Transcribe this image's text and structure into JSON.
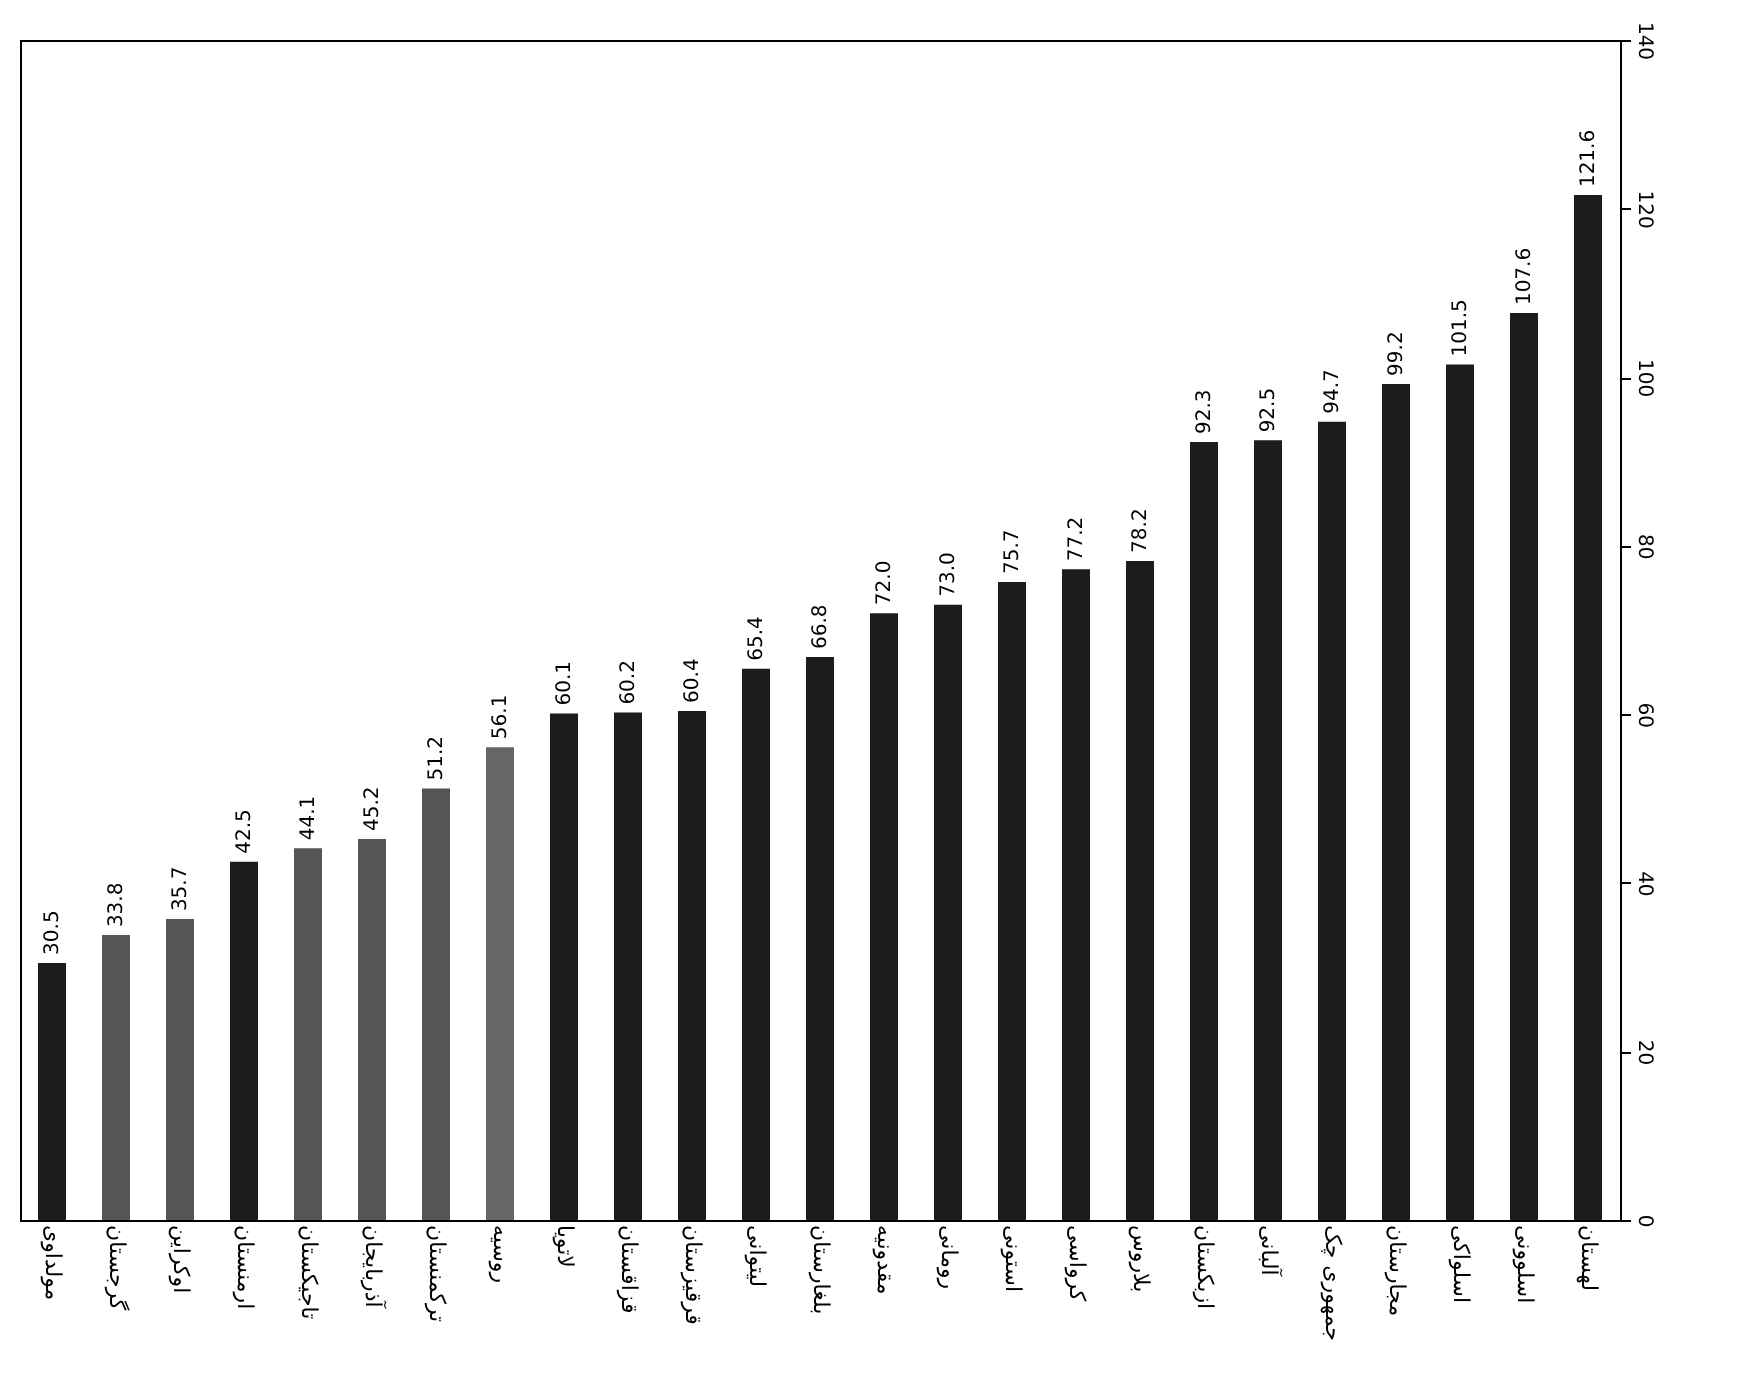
{
  "chart_data": {
    "type": "bar",
    "categories": [
      "مولداوی",
      "گرجستان",
      "اوکراین",
      "ارمنستان",
      "تاجیکستان",
      "آذربایجان",
      "ترکمنستان",
      "روسیه",
      "لاتویا",
      "قزاقستان",
      "قرقیزستان",
      "لیتوانی",
      "بلغارستان",
      "مقدونیه",
      "رومانی",
      "استونی",
      "کرواسی",
      "بلاروس",
      "ازبکستان",
      "آلبانی",
      "جمهوری چک",
      "مجارستان",
      "اسلواکی",
      "اسلوونی",
      "لهستان"
    ],
    "values": [
      30.5,
      33.8,
      35.7,
      42.5,
      44.1,
      45.2,
      51.2,
      56.1,
      60.1,
      60.2,
      60.4,
      65.4,
      66.8,
      72.0,
      73.0,
      75.7,
      77.2,
      78.2,
      92.3,
      92.5,
      94.7,
      99.2,
      101.5,
      107.6,
      121.6
    ],
    "value_labels": [
      "30.5",
      "33.8",
      "35.7",
      "42.5",
      "44.1",
      "45.2",
      "51.2",
      "56.1",
      "60.1",
      "60.2",
      "60.4",
      "65.4",
      "66.8",
      "72.0",
      "73.0",
      "75.7",
      "77.2",
      "78.2",
      "92.3",
      "92.5",
      "94.7",
      "99.2",
      "101.5",
      "107.6",
      "121.6"
    ],
    "colors": [
      "#1c1c1c",
      "#555555",
      "#555555",
      "#1c1c1c",
      "#555555",
      "#555555",
      "#555555",
      "#666666",
      "#1c1c1c",
      "#1c1c1c",
      "#1c1c1c",
      "#1c1c1c",
      "#1c1c1c",
      "#1c1c1c",
      "#1c1c1c",
      "#1c1c1c",
      "#1c1c1c",
      "#1c1c1c",
      "#1c1c1c",
      "#1c1c1c",
      "#1c1c1c",
      "#1c1c1c",
      "#1c1c1c",
      "#1c1c1c",
      "#1c1c1c"
    ],
    "ylim": [
      0,
      140
    ],
    "yticks": [
      0,
      20,
      40,
      60,
      80,
      100,
      120,
      140
    ],
    "grid": false
  }
}
